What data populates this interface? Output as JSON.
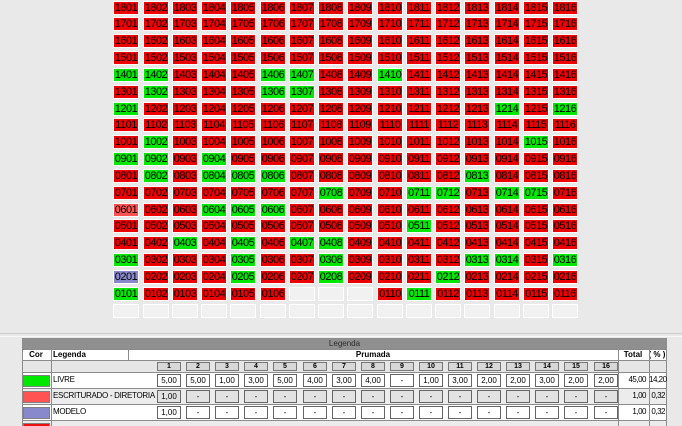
{
  "grid": {
    "state_colors": {
      "R": "#ee0000",
      "G": "#00e800",
      "E": "#ff5252",
      "M": "#8888cc",
      "X": "#f1f1f1"
    },
    "rows": [
      [
        "1801|R",
        "1802|R",
        "1803|R",
        "1804|R",
        "1805|R",
        "1806|R",
        "1807|R",
        "1808|R",
        "1809|R",
        "1810|R",
        "1811|R",
        "1812|R",
        "1813|R",
        "1814|R",
        "1815|R",
        "1816|R"
      ],
      [
        "1701|R",
        "1702|R",
        "1703|R",
        "1704|R",
        "1705|R",
        "1706|R",
        "1707|R",
        "1708|R",
        "1709|R",
        "1710|R",
        "1711|R",
        "1712|R",
        "1713|R",
        "1714|R",
        "1715|R",
        "1716|R"
      ],
      [
        "1601|R",
        "1602|R",
        "1603|R",
        "1604|R",
        "1605|R",
        "1606|R",
        "1607|R",
        "1608|R",
        "1609|R",
        "1610|R",
        "1611|R",
        "1612|R",
        "1613|R",
        "1614|R",
        "1615|R",
        "1616|R"
      ],
      [
        "1501|R",
        "1502|R",
        "1503|R",
        "1504|R",
        "1505|R",
        "1506|R",
        "1507|R",
        "1508|R",
        "1509|R",
        "1510|R",
        "1511|R",
        "1512|R",
        "1513|R",
        "1514|R",
        "1515|R",
        "1516|R"
      ],
      [
        "1401|G",
        "1402|G",
        "1403|R",
        "1404|R",
        "1405|R",
        "1406|G",
        "1407|G",
        "1408|R",
        "1409|R",
        "1410|G",
        "1411|R",
        "1412|R",
        "1413|R",
        "1414|R",
        "1415|R",
        "1416|R"
      ],
      [
        "1301|R",
        "1302|G",
        "1303|R",
        "1304|R",
        "1305|R",
        "1306|G",
        "1307|G",
        "1308|R",
        "1309|R",
        "1310|R",
        "1311|R",
        "1312|R",
        "1313|R",
        "1314|R",
        "1315|R",
        "1316|R"
      ],
      [
        "1201|G",
        "1202|R",
        "1203|R",
        "1204|R",
        "1205|R",
        "1206|R",
        "1207|R",
        "1208|R",
        "1209|R",
        "1210|R",
        "1211|R",
        "1212|R",
        "1213|R",
        "1214|G",
        "1215|R",
        "1216|G"
      ],
      [
        "1101|R",
        "1102|R",
        "1103|R",
        "1104|R",
        "1105|R",
        "1106|R",
        "1107|R",
        "1108|R",
        "1109|R",
        "1110|R",
        "1111|R",
        "1112|R",
        "1113|R",
        "1114|R",
        "1115|R",
        "1116|R"
      ],
      [
        "1001|R",
        "1002|G",
        "1003|R",
        "1004|R",
        "1005|R",
        "1006|R",
        "1007|R",
        "1008|R",
        "1009|R",
        "1010|R",
        "1011|R",
        "1012|R",
        "1013|R",
        "1014|R",
        "1015|G",
        "1016|R"
      ],
      [
        "0901|G",
        "0902|G",
        "0903|R",
        "0904|G",
        "0905|R",
        "0906|R",
        "0907|R",
        "0908|R",
        "0909|R",
        "0910|R",
        "0911|R",
        "0912|R",
        "0913|R",
        "0914|R",
        "0915|R",
        "0916|R"
      ],
      [
        "0801|R",
        "0802|G",
        "0803|R",
        "0804|G",
        "0805|G",
        "0806|G",
        "0807|R",
        "0808|R",
        "0809|R",
        "0810|R",
        "0811|R",
        "0812|R",
        "0813|G",
        "0814|R",
        "0815|R",
        "0816|R"
      ],
      [
        "0701|R",
        "0702|R",
        "0703|R",
        "0704|R",
        "0705|R",
        "0706|R",
        "0707|R",
        "0708|G",
        "0709|R",
        "0710|R",
        "0711|G",
        "0712|G",
        "0713|R",
        "0714|G",
        "0715|G",
        "0716|R"
      ],
      [
        "0601|E",
        "0602|R",
        "0603|R",
        "0604|G",
        "0605|G",
        "0606|G",
        "0607|R",
        "0608|R",
        "0609|R",
        "0610|R",
        "0611|R",
        "0612|R",
        "0613|R",
        "0614|R",
        "0615|R",
        "0616|R"
      ],
      [
        "0501|R",
        "0502|R",
        "0503|R",
        "0504|R",
        "0505|R",
        "0506|R",
        "0507|R",
        "0508|R",
        "0509|R",
        "0510|R",
        "0511|G",
        "0512|R",
        "0513|R",
        "0514|R",
        "0515|R",
        "0516|R"
      ],
      [
        "0401|R",
        "0402|R",
        "0403|G",
        "0404|R",
        "0405|G",
        "0406|R",
        "0407|G",
        "0408|G",
        "0409|R",
        "0410|R",
        "0411|R",
        "0412|R",
        "0413|R",
        "0414|R",
        "0415|R",
        "0416|R"
      ],
      [
        "0301|G",
        "0302|R",
        "0303|R",
        "0304|R",
        "0305|G",
        "0306|R",
        "0307|R",
        "0308|G",
        "0309|R",
        "0310|R",
        "0311|R",
        "0312|R",
        "0313|G",
        "0314|G",
        "0315|R",
        "0316|G"
      ],
      [
        "0201|M",
        "0202|R",
        "0203|R",
        "0204|R",
        "0205|G",
        "0206|R",
        "0207|R",
        "0208|G",
        "0209|R",
        "0210|R",
        "0211|R",
        "0212|G",
        "0213|R",
        "0214|R",
        "0215|R",
        "0216|R"
      ],
      [
        "0101|G",
        "0102|R",
        "0103|R",
        "0104|R",
        "0105|R",
        "0106|R",
        "|X",
        "|X",
        "|X",
        "0110|R",
        "0111|G",
        "0112|R",
        "0113|R",
        "0114|R",
        "0115|R",
        "0116|R"
      ],
      [
        "|X",
        "|X",
        "|X",
        "|X",
        "|X",
        "|X",
        "|X",
        "|X",
        "|X",
        "|X",
        "|X",
        "|X",
        "|X",
        "|X",
        "|X",
        "|X"
      ]
    ]
  },
  "legend": {
    "title": "Legenda",
    "cor_header": "Cor",
    "legenda_header": "Legenda",
    "prumada_header": "Prumada",
    "total_header": "Total",
    "pct_header": "( % )",
    "columns": [
      "1",
      "2",
      "3",
      "4",
      "5",
      "6",
      "7",
      "8",
      "9",
      "10",
      "11",
      "12",
      "13",
      "14",
      "15",
      "16"
    ],
    "rows": [
      {
        "color": "#00e800",
        "label": "LIVRE",
        "values": [
          "5,00",
          "5,00",
          "1,00",
          "3,00",
          "5,00",
          "4,00",
          "3,00",
          "4,00",
          "-",
          "1,00",
          "3,00",
          "2,00",
          "2,00",
          "3,00",
          "2,00",
          "2,00"
        ],
        "total": "45,00",
        "pct": "14,20"
      },
      {
        "color": "#ff5252",
        "label": "ESCRITURADO - DIRETORIA",
        "values": [
          "1,00",
          "-",
          "-",
          "-",
          "-",
          "-",
          "-",
          "-",
          "-",
          "-",
          "-",
          "-",
          "-",
          "-",
          "-",
          "-"
        ],
        "total": "1,00",
        "pct": "0,32"
      },
      {
        "color": "#8888cc",
        "label": "MODELO",
        "values": [
          "1,00",
          "-",
          "-",
          "-",
          "-",
          "-",
          "-",
          "-",
          "-",
          "-",
          "-",
          "-",
          "-",
          "-",
          "-",
          "-"
        ],
        "total": "1,00",
        "pct": "0,32"
      },
      {
        "color": "#ee1111",
        "label": "",
        "values": [],
        "total": "",
        "pct": ""
      }
    ]
  }
}
